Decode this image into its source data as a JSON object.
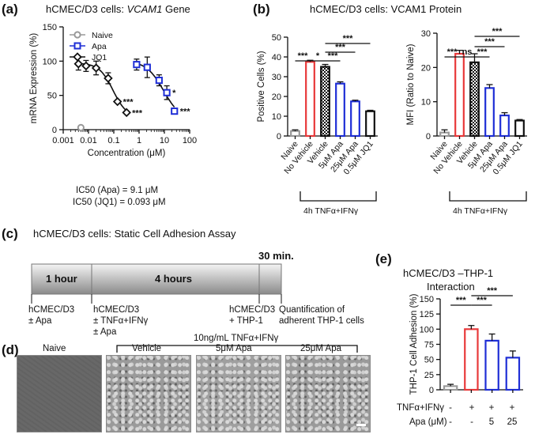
{
  "panels": {
    "a": "(a)",
    "b": "(b)",
    "c": "(c)",
    "d": "(d)",
    "e": "(e)"
  },
  "panel_a": {
    "title_prefix": "hCMEC/D3 cells: ",
    "title_italic": "VCAM1",
    "title_suffix": " Gene",
    "legend": [
      "Naive",
      "Apa",
      "JQ1"
    ],
    "ic50_apa": "IC50 (Apa) = 9.1 μM",
    "ic50_jq1": "IC50 (JQ1) = 0.093 μM"
  },
  "panel_b": {
    "title": "hCMEC/D3 cells: VCAM1 Protein",
    "bracket_label": "4h TNFα+IFNγ"
  },
  "panel_c": {
    "title": "hCMEC/D3 cells: Static Cell Adhesion Assay",
    "segments": [
      "1 hour",
      "4 hours",
      "30 min."
    ],
    "steps": [
      {
        "line1": "hCMEC/D3",
        "line2": "± Apa",
        "line3": ""
      },
      {
        "line1": "hCMEC/D3",
        "line2": "± TNFα+IFNγ",
        "line3": "± Apa"
      },
      {
        "line1": "hCMEC/D3",
        "line2": "+ THP-1",
        "line3": ""
      },
      {
        "line1": "Quantification of",
        "line2": "adherent THP-1 cells",
        "line3": ""
      }
    ]
  },
  "panel_d": {
    "treatment_header": "10ng/mL TNFα+IFNγ",
    "images": [
      "Naive",
      "Vehicle",
      "5μM Apa",
      "25μM Apa"
    ]
  },
  "panel_e": {
    "title_line1": "hCMEC/D3 –THP-1",
    "title_line2": "Interaction",
    "row_labels": [
      "TNFα+IFNγ",
      "Apa (μM)"
    ],
    "row1": [
      "-",
      "+",
      "+",
      "+"
    ],
    "row2": [
      "-",
      "-",
      "5",
      "25"
    ]
  },
  "colors": {
    "naive": "#999999",
    "vehicle": "#e8393a",
    "apa": "#1f2fd6",
    "jq1": "#111111"
  },
  "chart_data": [
    {
      "id": "a",
      "type": "scatter",
      "title": "hCMEC/D3 cells: VCAM1 Gene",
      "xlabel": "Concentration (μM)",
      "ylabel": "mRNA Expression (%)",
      "xscale": "log",
      "xlim": [
        0.001,
        100
      ],
      "ylim": [
        0,
        150
      ],
      "xticks": [
        0.001,
        0.01,
        0.1,
        1,
        10,
        100
      ],
      "xtick_labels": [
        "0.001",
        "0.01",
        "0.1",
        "1",
        "10",
        "100"
      ],
      "yticks": [
        0,
        50,
        100,
        150
      ],
      "series": [
        {
          "name": "Naive",
          "marker": "circle",
          "x": [
            0.005
          ],
          "y": [
            3
          ],
          "err": [
            0
          ],
          "sig": [
            ""
          ]
        },
        {
          "name": "Apa",
          "marker": "square",
          "x": [
            0.8,
            2.1,
            6.2,
            12.5,
            25
          ],
          "y": [
            95,
            91,
            72,
            54,
            27
          ],
          "err": [
            8,
            15,
            8,
            10,
            0
          ],
          "sig": [
            "",
            "",
            "",
            "*",
            "***"
          ]
        },
        {
          "name": "JQ1",
          "marker": "diamond",
          "x": [
            0.004,
            0.008,
            0.02,
            0.06,
            0.14,
            0.32
          ],
          "y": [
            96,
            93,
            90,
            75,
            41,
            25
          ],
          "err": [
            9,
            8,
            10,
            8,
            0,
            0
          ],
          "sig": [
            "",
            "",
            "",
            "",
            "***",
            "***"
          ]
        }
      ],
      "legend_loc": "top-right"
    },
    {
      "id": "b1",
      "type": "bar",
      "ylabel": "Positive Cells (%)",
      "ylim": [
        0,
        50
      ],
      "yticks": [
        0,
        10,
        20,
        30,
        40,
        50
      ],
      "categories": [
        "Naive",
        "No Vehicle",
        "Vehicle",
        "5μM Apa",
        "25μM Apa",
        "0.5μM JQ1"
      ],
      "values": [
        2.5,
        37.5,
        35,
        26.5,
        17.5,
        12.5
      ],
      "errors": [
        0.6,
        0.8,
        1.2,
        0.9,
        0.6,
        0.5
      ],
      "sig_labels": [
        "***",
        "*",
        "***",
        "***",
        "***"
      ]
    },
    {
      "id": "b2",
      "type": "bar",
      "ylabel": "MFI (Ratio to Naive)",
      "ylim": [
        0,
        30
      ],
      "yticks": [
        0,
        10,
        20,
        30
      ],
      "categories": [
        "Naive",
        "No Vehicle",
        "Vehicle",
        "5μM Apa",
        "25μM Apa",
        "0.5μM JQ1"
      ],
      "values": [
        1,
        24,
        21.5,
        14,
        6,
        4.5
      ],
      "errors": [
        0.8,
        1,
        2.5,
        1,
        0.8,
        0.3
      ],
      "sig_labels": [
        "***",
        "ns",
        "***",
        "***",
        "***"
      ]
    },
    {
      "id": "e",
      "type": "bar",
      "ylabel": "THP-1 Cell Adhesion (%)",
      "ylim": [
        0,
        150
      ],
      "yticks": [
        0,
        25,
        50,
        75,
        100,
        125,
        150
      ],
      "categories": [
        "Naive",
        "Vehicle",
        "5μM Apa",
        "25μM Apa"
      ],
      "values": [
        6,
        100,
        81,
        53
      ],
      "errors": [
        3,
        6,
        11,
        11
      ],
      "sig_labels": [
        "***",
        "***",
        "***"
      ]
    }
  ]
}
